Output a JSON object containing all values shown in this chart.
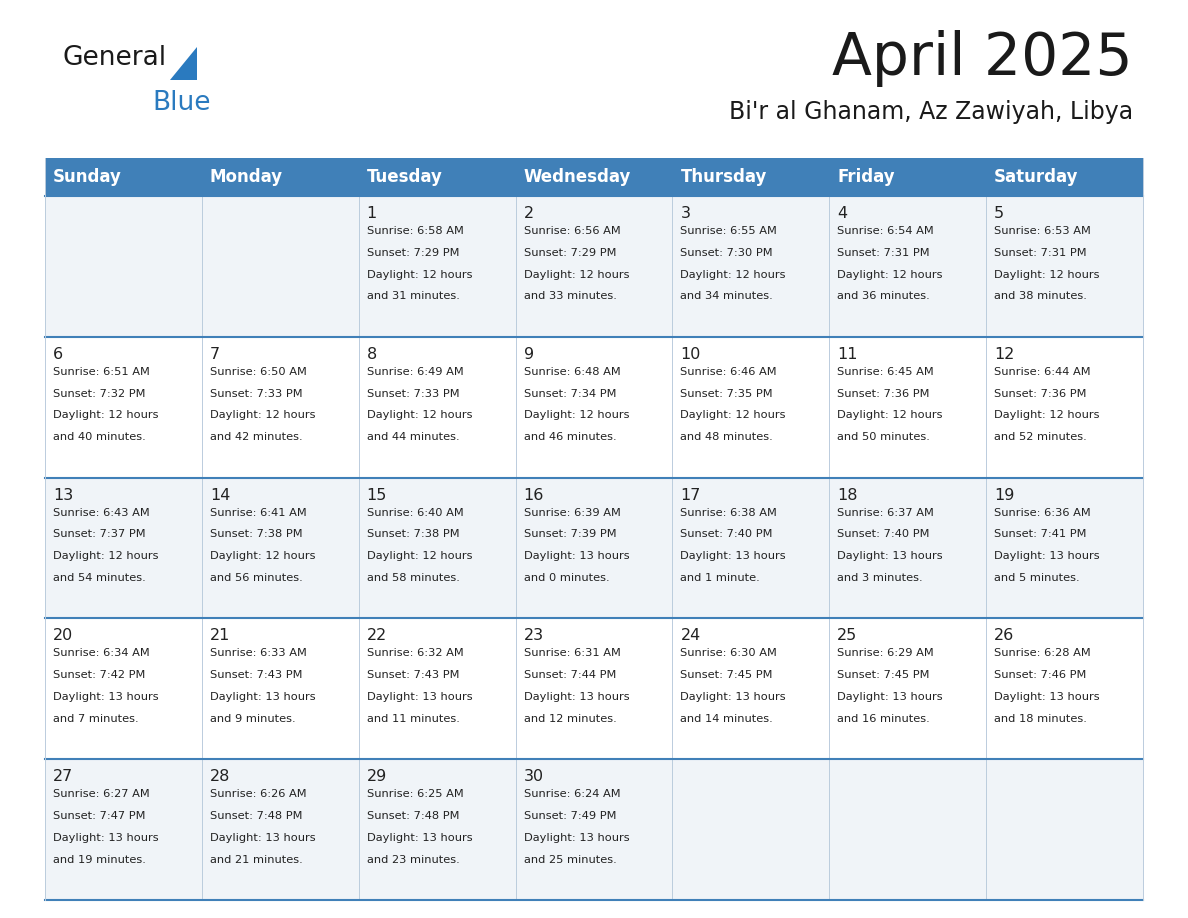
{
  "title": "April 2025",
  "subtitle": "Bi'r al Ghanam, Az Zawiyah, Libya",
  "header_color": "#4080b8",
  "header_text_color": "#ffffff",
  "days_of_week": [
    "Sunday",
    "Monday",
    "Tuesday",
    "Wednesday",
    "Thursday",
    "Friday",
    "Saturday"
  ],
  "row_bg_even": "#f0f4f8",
  "row_bg_odd": "#ffffff",
  "border_color": "#4080b8",
  "text_color": "#222222",
  "divider_color": "#bbccdd",
  "calendar_data": [
    [
      {
        "day": "",
        "sunrise": "",
        "sunset": "",
        "daylight": ""
      },
      {
        "day": "",
        "sunrise": "",
        "sunset": "",
        "daylight": ""
      },
      {
        "day": "1",
        "sunrise": "6:58 AM",
        "sunset": "7:29 PM",
        "daylight_h": "12 hours",
        "daylight_m": "and 31 minutes."
      },
      {
        "day": "2",
        "sunrise": "6:56 AM",
        "sunset": "7:29 PM",
        "daylight_h": "12 hours",
        "daylight_m": "and 33 minutes."
      },
      {
        "day": "3",
        "sunrise": "6:55 AM",
        "sunset": "7:30 PM",
        "daylight_h": "12 hours",
        "daylight_m": "and 34 minutes."
      },
      {
        "day": "4",
        "sunrise": "6:54 AM",
        "sunset": "7:31 PM",
        "daylight_h": "12 hours",
        "daylight_m": "and 36 minutes."
      },
      {
        "day": "5",
        "sunrise": "6:53 AM",
        "sunset": "7:31 PM",
        "daylight_h": "12 hours",
        "daylight_m": "and 38 minutes."
      }
    ],
    [
      {
        "day": "6",
        "sunrise": "6:51 AM",
        "sunset": "7:32 PM",
        "daylight_h": "12 hours",
        "daylight_m": "and 40 minutes."
      },
      {
        "day": "7",
        "sunrise": "6:50 AM",
        "sunset": "7:33 PM",
        "daylight_h": "12 hours",
        "daylight_m": "and 42 minutes."
      },
      {
        "day": "8",
        "sunrise": "6:49 AM",
        "sunset": "7:33 PM",
        "daylight_h": "12 hours",
        "daylight_m": "and 44 minutes."
      },
      {
        "day": "9",
        "sunrise": "6:48 AM",
        "sunset": "7:34 PM",
        "daylight_h": "12 hours",
        "daylight_m": "and 46 minutes."
      },
      {
        "day": "10",
        "sunrise": "6:46 AM",
        "sunset": "7:35 PM",
        "daylight_h": "12 hours",
        "daylight_m": "and 48 minutes."
      },
      {
        "day": "11",
        "sunrise": "6:45 AM",
        "sunset": "7:36 PM",
        "daylight_h": "12 hours",
        "daylight_m": "and 50 minutes."
      },
      {
        "day": "12",
        "sunrise": "6:44 AM",
        "sunset": "7:36 PM",
        "daylight_h": "12 hours",
        "daylight_m": "and 52 minutes."
      }
    ],
    [
      {
        "day": "13",
        "sunrise": "6:43 AM",
        "sunset": "7:37 PM",
        "daylight_h": "12 hours",
        "daylight_m": "and 54 minutes."
      },
      {
        "day": "14",
        "sunrise": "6:41 AM",
        "sunset": "7:38 PM",
        "daylight_h": "12 hours",
        "daylight_m": "and 56 minutes."
      },
      {
        "day": "15",
        "sunrise": "6:40 AM",
        "sunset": "7:38 PM",
        "daylight_h": "12 hours",
        "daylight_m": "and 58 minutes."
      },
      {
        "day": "16",
        "sunrise": "6:39 AM",
        "sunset": "7:39 PM",
        "daylight_h": "13 hours",
        "daylight_m": "and 0 minutes."
      },
      {
        "day": "17",
        "sunrise": "6:38 AM",
        "sunset": "7:40 PM",
        "daylight_h": "13 hours",
        "daylight_m": "and 1 minute."
      },
      {
        "day": "18",
        "sunrise": "6:37 AM",
        "sunset": "7:40 PM",
        "daylight_h": "13 hours",
        "daylight_m": "and 3 minutes."
      },
      {
        "day": "19",
        "sunrise": "6:36 AM",
        "sunset": "7:41 PM",
        "daylight_h": "13 hours",
        "daylight_m": "and 5 minutes."
      }
    ],
    [
      {
        "day": "20",
        "sunrise": "6:34 AM",
        "sunset": "7:42 PM",
        "daylight_h": "13 hours",
        "daylight_m": "and 7 minutes."
      },
      {
        "day": "21",
        "sunrise": "6:33 AM",
        "sunset": "7:43 PM",
        "daylight_h": "13 hours",
        "daylight_m": "and 9 minutes."
      },
      {
        "day": "22",
        "sunrise": "6:32 AM",
        "sunset": "7:43 PM",
        "daylight_h": "13 hours",
        "daylight_m": "and 11 minutes."
      },
      {
        "day": "23",
        "sunrise": "6:31 AM",
        "sunset": "7:44 PM",
        "daylight_h": "13 hours",
        "daylight_m": "and 12 minutes."
      },
      {
        "day": "24",
        "sunrise": "6:30 AM",
        "sunset": "7:45 PM",
        "daylight_h": "13 hours",
        "daylight_m": "and 14 minutes."
      },
      {
        "day": "25",
        "sunrise": "6:29 AM",
        "sunset": "7:45 PM",
        "daylight_h": "13 hours",
        "daylight_m": "and 16 minutes."
      },
      {
        "day": "26",
        "sunrise": "6:28 AM",
        "sunset": "7:46 PM",
        "daylight_h": "13 hours",
        "daylight_m": "and 18 minutes."
      }
    ],
    [
      {
        "day": "27",
        "sunrise": "6:27 AM",
        "sunset": "7:47 PM",
        "daylight_h": "13 hours",
        "daylight_m": "and 19 minutes."
      },
      {
        "day": "28",
        "sunrise": "6:26 AM",
        "sunset": "7:48 PM",
        "daylight_h": "13 hours",
        "daylight_m": "and 21 minutes."
      },
      {
        "day": "29",
        "sunrise": "6:25 AM",
        "sunset": "7:48 PM",
        "daylight_h": "13 hours",
        "daylight_m": "and 23 minutes."
      },
      {
        "day": "30",
        "sunrise": "6:24 AM",
        "sunset": "7:49 PM",
        "daylight_h": "13 hours",
        "daylight_m": "and 25 minutes."
      },
      {
        "day": "",
        "sunrise": "",
        "sunset": "",
        "daylight_h": "",
        "daylight_m": ""
      },
      {
        "day": "",
        "sunrise": "",
        "sunset": "",
        "daylight_h": "",
        "daylight_m": ""
      },
      {
        "day": "",
        "sunrise": "",
        "sunset": "",
        "daylight_h": "",
        "daylight_m": ""
      }
    ]
  ],
  "logo_text_general": "General",
  "logo_text_blue": "Blue",
  "logo_color_general": "#1a1a1a",
  "logo_color_blue": "#2a7abf",
  "logo_triangle_color": "#2a7abf",
  "fig_width": 11.88,
  "fig_height": 9.18,
  "dpi": 100
}
